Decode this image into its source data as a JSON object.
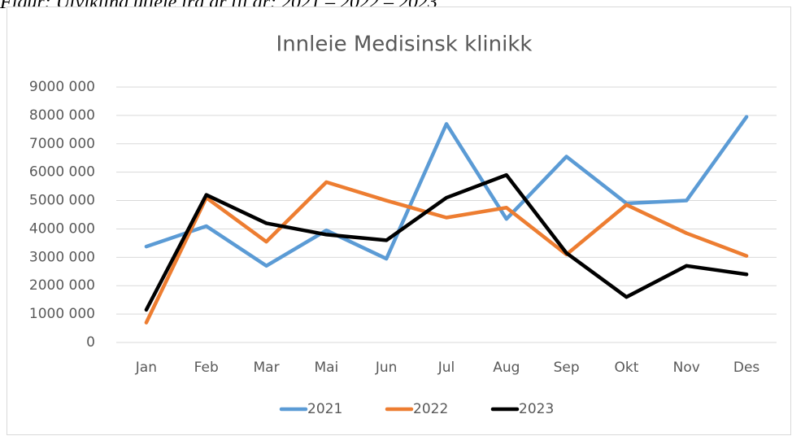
{
  "caption": "Figur: Utvikling utleie fra år til år: 2021 – 2022 – 2023",
  "chart_data": {
    "type": "line",
    "title": "Innleie Medisinsk klinikk",
    "categories": [
      "Jan",
      "Feb",
      "Mar",
      "Mai",
      "Jun",
      "Jul",
      "Aug",
      "Sep",
      "Okt",
      "Nov",
      "Des"
    ],
    "series": [
      {
        "name": "2021",
        "color": "#5b9bd5",
        "values": [
          3380000,
          4100000,
          2700000,
          3950000,
          2950000,
          7700000,
          4350000,
          6550000,
          4900000,
          5000000,
          7950000
        ]
      },
      {
        "name": "2022",
        "color": "#ed7d31",
        "values": [
          700000,
          5100000,
          3550000,
          5650000,
          5000000,
          4400000,
          4750000,
          3100000,
          4850000,
          3850000,
          3050000
        ]
      },
      {
        "name": "2023",
        "color": "#000000",
        "values": [
          1150000,
          5200000,
          4200000,
          3800000,
          3600000,
          5100000,
          5900000,
          3150000,
          1600000,
          2700000,
          2400000
        ]
      }
    ],
    "ylim": [
      0,
      9000000
    ],
    "yticks": [
      0,
      {
        "value": 1000000,
        "label": "1000 000"
      },
      {
        "value": 2000000,
        "label": "2000 000"
      },
      {
        "value": 3000000,
        "label": "3000 000"
      },
      {
        "value": 4000000,
        "label": "4000 000"
      },
      {
        "value": 5000000,
        "label": "5000 000"
      },
      {
        "value": 6000000,
        "label": "6000 000"
      },
      {
        "value": 7000000,
        "label": "7000 000"
      },
      {
        "value": 8000000,
        "label": "8000 000"
      },
      {
        "value": 9000000,
        "label": "9000 000"
      }
    ],
    "grid": true,
    "legend": "bottom"
  }
}
